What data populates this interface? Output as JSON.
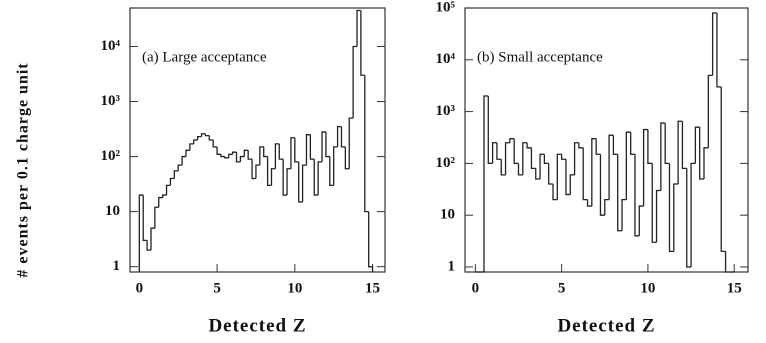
{
  "ylabel": "# events per 0.1 charge unit",
  "chart_data": [
    {
      "type": "histogram",
      "annotation": "(a) Large acceptance",
      "xlabel": "Detected Z",
      "log_y": true,
      "color": "#222222",
      "xlim": [
        -0.6,
        15.8
      ],
      "xticks": [
        0,
        5,
        10,
        15
      ],
      "ylim": [
        0.8,
        50000
      ],
      "yticks": [
        1,
        10,
        {
          "value": 100,
          "label": "10²"
        },
        {
          "value": 1000,
          "label": "10³"
        },
        {
          "value": 10000,
          "label": "10⁴"
        }
      ],
      "bins": [
        0,
        0.25,
        0.5,
        0.75,
        1,
        1.25,
        1.5,
        1.75,
        2,
        2.25,
        2.5,
        2.75,
        3,
        3.25,
        3.5,
        3.75,
        4,
        4.25,
        4.5,
        4.75,
        5,
        5.25,
        5.5,
        5.75,
        6,
        6.25,
        6.5,
        6.75,
        7,
        7.25,
        7.5,
        7.75,
        8,
        8.25,
        8.5,
        8.75,
        9,
        9.25,
        9.5,
        9.75,
        10,
        10.25,
        10.5,
        10.75,
        11,
        11.25,
        11.5,
        11.75,
        12,
        12.25,
        12.5,
        12.75,
        13,
        13.25,
        13.5,
        13.75,
        14,
        14.25,
        14.5,
        14.75,
        15
      ],
      "values": [
        20,
        3,
        2,
        5,
        12,
        18,
        20,
        30,
        40,
        55,
        70,
        100,
        130,
        170,
        200,
        230,
        260,
        240,
        200,
        150,
        110,
        100,
        95,
        110,
        120,
        80,
        100,
        130,
        90,
        40,
        70,
        150,
        100,
        30,
        60,
        170,
        90,
        20,
        60,
        220,
        80,
        15,
        70,
        250,
        90,
        20,
        80,
        280,
        100,
        30,
        150,
        350,
        150,
        60,
        500,
        10000,
        45000,
        3000,
        10,
        1
      ]
    },
    {
      "type": "histogram",
      "annotation": "(b) Small acceptance",
      "xlabel": "Detected Z",
      "log_y": true,
      "color": "#222222",
      "xlim": [
        -0.6,
        15.8
      ],
      "xticks": [
        0,
        5,
        10,
        15
      ],
      "ylim": [
        0.8,
        100000
      ],
      "yticks": [
        1,
        10,
        {
          "value": 100,
          "label": "10²"
        },
        {
          "value": 1000,
          "label": "10³"
        },
        {
          "value": 10000,
          "label": "10⁴"
        },
        {
          "value": 100000,
          "label": "10⁵"
        }
      ],
      "bins": [
        0,
        0.25,
        0.5,
        0.75,
        1,
        1.25,
        1.5,
        1.75,
        2,
        2.25,
        2.5,
        2.75,
        3,
        3.25,
        3.5,
        3.75,
        4,
        4.25,
        4.5,
        4.75,
        5,
        5.25,
        5.5,
        5.75,
        6,
        6.25,
        6.5,
        6.75,
        7,
        7.25,
        7.5,
        7.75,
        8,
        8.25,
        8.5,
        8.75,
        9,
        9.25,
        9.5,
        9.75,
        10,
        10.25,
        10.5,
        10.75,
        11,
        11.25,
        11.5,
        11.75,
        12,
        12.25,
        12.5,
        12.75,
        13,
        13.25,
        13.5,
        13.75,
        14,
        14.25,
        14.5,
        14.75,
        15
      ],
      "values": [
        0,
        0,
        2000,
        100,
        250,
        120,
        60,
        250,
        300,
        100,
        60,
        250,
        200,
        80,
        50,
        150,
        100,
        40,
        20,
        150,
        120,
        25,
        60,
        250,
        200,
        20,
        15,
        300,
        150,
        10,
        20,
        350,
        150,
        5,
        20,
        400,
        150,
        4,
        15,
        450,
        100,
        3,
        30,
        600,
        100,
        2,
        40,
        650,
        80,
        1,
        100,
        500,
        50,
        200,
        5000,
        80000,
        3000,
        2,
        0,
        0
      ]
    }
  ]
}
